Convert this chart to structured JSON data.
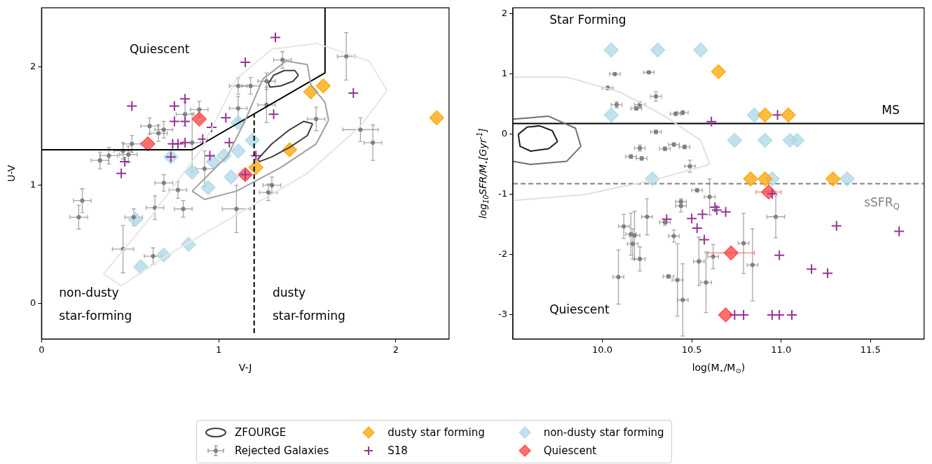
{
  "chart_data": [
    {
      "type": "scatter",
      "xlabel": "V-J",
      "ylabel": "U-V",
      "xlim": [
        0,
        2.3
      ],
      "ylim": [
        -0.3,
        2.5
      ],
      "xticks": [
        0,
        1,
        2
      ],
      "yticks": [
        0,
        1,
        2
      ],
      "grid": false,
      "legend": "bottom",
      "annotations": [
        "Quiescent",
        "non-dusty",
        "star-forming",
        "dusty",
        "star-forming"
      ],
      "series": [
        {
          "type": "line",
          "name": "ZFOURGE",
          "color": "#404040",
          "marker": "none",
          "x": [
            1.28,
            1.31,
            1.37,
            1.43,
            1.45
          ],
          "values": [
            1.86,
            1.93,
            1.97,
            1.97,
            1.93
          ]
        },
        {
          "type": "line",
          "color": "#404040",
          "marker": "none",
          "x": [
            1.28,
            1.29,
            1.35,
            1.42,
            1.45
          ],
          "values": [
            1.86,
            1.83,
            1.84,
            1.88,
            1.93
          ]
        },
        {
          "type": "line",
          "color": "#404040",
          "marker": "none",
          "x": [
            1.22,
            1.3,
            1.4,
            1.48,
            1.53
          ],
          "values": [
            1.22,
            1.35,
            1.47,
            1.54,
            1.52
          ]
        },
        {
          "type": "line",
          "color": "#404040",
          "marker": "none",
          "x": [
            1.22,
            1.23,
            1.3,
            1.4,
            1.5,
            1.53
          ],
          "values": [
            1.22,
            1.2,
            1.24,
            1.32,
            1.42,
            1.52
          ]
        },
        {
          "type": "line",
          "color": "#a0a0a0",
          "marker": "none",
          "x": [
            0.85,
            1.05,
            1.15,
            1.25,
            1.38,
            1.5,
            1.52,
            1.6,
            1.62
          ],
          "values": [
            0.95,
            1.25,
            1.55,
            1.9,
            2.05,
            2.02,
            1.85,
            1.7,
            1.55
          ]
        },
        {
          "type": "line",
          "color": "#a0a0a0",
          "marker": "none",
          "x": [
            0.85,
            0.92,
            1.1,
            1.35,
            1.55,
            1.62
          ],
          "values": [
            0.95,
            0.88,
            0.95,
            1.15,
            1.35,
            1.55
          ]
        },
        {
          "type": "line",
          "color": "#e6e6e6",
          "marker": "none",
          "x": [
            0.35,
            0.6,
            0.9,
            1.1,
            1.3,
            1.55,
            1.85,
            1.95
          ],
          "values": [
            0.25,
            0.7,
            1.3,
            1.9,
            2.15,
            2.2,
            2.05,
            1.8
          ]
        },
        {
          "type": "line",
          "color": "#e6e6e6",
          "marker": "none",
          "x": [
            0.35,
            0.45,
            0.7,
            1.1,
            1.5,
            1.8,
            1.95
          ],
          "values": [
            0.25,
            0.15,
            0.4,
            0.75,
            1.1,
            1.5,
            1.8
          ]
        },
        {
          "type": "line",
          "color": "#000000",
          "marker": "none",
          "x": [
            0,
            0.85,
            1.6,
            1.6
          ],
          "values": [
            1.3,
            1.3,
            1.95,
            2.5
          ]
        },
        {
          "type": "line",
          "color": "#000000",
          "marker": "none",
          "line_style": "dashed",
          "x": [
            1.2,
            1.2
          ],
          "values": [
            -0.25,
            1.6
          ]
        },
        {
          "name": "Rejected Galaxies",
          "color": "#808080",
          "marker": "circle",
          "x": [
            0.33,
            0.38,
            0.46,
            0.49,
            0.51,
            0.61,
            0.66,
            0.69,
            0.81,
            0.89,
            0.85,
            1.11,
            1.11,
            1.18,
            1.27,
            1.27,
            1.36,
            1.72,
            1.55,
            1.8,
            1.87,
            1.3,
            1.28,
            0.69,
            0.77,
            0.92,
            0.23,
            0.21,
            0.46,
            0.63,
            0.52,
            0.64,
            0.8,
            1.1
          ],
          "values": [
            1.21,
            1.25,
            1.29,
            1.26,
            1.35,
            1.5,
            1.44,
            1.47,
            1.6,
            1.64,
            1.36,
            1.84,
            1.65,
            1.84,
            1.68,
            1.88,
            2.06,
            2.09,
            1.56,
            1.47,
            1.36,
            1.0,
            0.94,
            1.02,
            0.96,
            1.14,
            0.87,
            0.73,
            0.46,
            0.4,
            0.73,
            0.81,
            0.8,
            0.8
          ],
          "errors": [
            0.07,
            0.07,
            0.07,
            0.07,
            0.07,
            0.07,
            0.07,
            0.07,
            0.1,
            0.07,
            0.25,
            0.07,
            0.1,
            0.07,
            0.15,
            0.07,
            0.07,
            0.2,
            0.1,
            0.1,
            0.15,
            0.07,
            0.07,
            0.07,
            0.07,
            0.15,
            0.1,
            0.1,
            0.2,
            0.07,
            0.07,
            0.1,
            0.07,
            0.2
          ],
          "xerrors": [
            0.05,
            0.05,
            0.05,
            0.05,
            0.05,
            0.05,
            0.05,
            0.05,
            0.05,
            0.05,
            0.05,
            0.05,
            0.05,
            0.05,
            0.05,
            0.05,
            0.05,
            0.05,
            0.05,
            0.1,
            0.05,
            0.05,
            0.05,
            0.05,
            0.05,
            0.05,
            0.05,
            0.05,
            0.06,
            0.05,
            0.05,
            0.05,
            0.05,
            0.08
          ]
        },
        {
          "name": "dusty star forming",
          "color": "#ffa500",
          "marker": "diamond",
          "x": [
            1.59,
            1.52,
            1.4,
            1.21,
            2.23
          ],
          "values": [
            1.84,
            1.79,
            1.3,
            1.15,
            1.57
          ]
        },
        {
          "name": "S18",
          "color": "#993399",
          "marker": "cross",
          "x": [
            1.15,
            1.32,
            0.51,
            0.81,
            0.75,
            0.75,
            0.81,
            0.96,
            1.04,
            0.91,
            1.06,
            0.74,
            0.77,
            0.81,
            0.47,
            0.45,
            0.73,
            0.95,
            1.31,
            1.76,
            1.21,
            1.15
          ],
          "values": [
            2.04,
            2.25,
            1.67,
            1.73,
            1.67,
            1.54,
            1.54,
            1.49,
            1.57,
            1.39,
            1.36,
            1.35,
            1.35,
            1.36,
            1.2,
            1.1,
            1.24,
            1.25,
            1.6,
            1.78,
            1.25,
            1.09
          ]
        },
        {
          "name": "non-dusty star forming",
          "color": "#add8e6",
          "marker": "diamond",
          "x": [
            0.73,
            1.11,
            0.85,
            0.94,
            0.97,
            1.03,
            1.11,
            1.19,
            1.07,
            0.53,
            0.69,
            0.83,
            0.56
          ],
          "values": [
            1.24,
            1.53,
            1.11,
            0.98,
            1.2,
            1.25,
            1.29,
            1.38,
            1.07,
            0.71,
            0.41,
            0.5,
            0.31
          ]
        },
        {
          "name": "Quiescent",
          "color": "#ff4040",
          "marker": "diamond",
          "x": [
            0.6,
            0.89,
            1.15
          ],
          "values": [
            1.35,
            1.56,
            1.09
          ]
        }
      ]
    },
    {
      "type": "scatter",
      "xlabel": "log(M$_{⋆}$/M$_{⊙}$)",
      "ylabel": "log$_{10}$SFR/M$_{⋆}$[Gyr$^{-1}$]",
      "xlim": [
        9.5,
        11.8
      ],
      "ylim": [
        -3.4,
        2.1
      ],
      "xticks": [
        {
          "value": 10,
          "label": "10.0"
        },
        {
          "value": 10.5,
          "label": "10.5"
        },
        {
          "value": 11,
          "label": "11.0"
        },
        {
          "value": 11.5,
          "label": "11.5"
        }
      ],
      "yticks": [
        -3,
        -2,
        -1,
        0,
        1,
        2
      ],
      "grid": false,
      "ref_lines": [
        {
          "axis": "y",
          "value": 0.18,
          "label": "MS",
          "color": "#000000",
          "line_style": "solid"
        },
        {
          "axis": "y",
          "value": -0.82,
          "label": "sSFR$_{Q}$",
          "color": "#808080",
          "line_style": "dashed"
        }
      ],
      "annotations": [
        "Star Forming",
        "Quiescent"
      ],
      "series": [
        {
          "type": "line",
          "color": "#202020",
          "marker": "none",
          "x": [
            9.53,
            9.58,
            9.65,
            9.72,
            9.75
          ],
          "values": [
            0.0,
            0.12,
            0.14,
            0.06,
            -0.12
          ]
        },
        {
          "type": "line",
          "color": "#202020",
          "marker": "none",
          "x": [
            9.53,
            9.54,
            9.6,
            9.7,
            9.75
          ],
          "values": [
            0.0,
            -0.2,
            -0.28,
            -0.24,
            -0.12
          ]
        },
        {
          "type": "line",
          "color": "#707070",
          "marker": "none",
          "x": [
            9.5,
            9.7,
            9.85,
            9.88
          ],
          "values": [
            0.25,
            0.3,
            0.1,
            -0.2
          ]
        },
        {
          "type": "line",
          "color": "#707070",
          "marker": "none",
          "x": [
            9.5,
            9.6,
            9.8,
            9.88
          ],
          "values": [
            -0.45,
            -0.5,
            -0.45,
            -0.2
          ]
        },
        {
          "type": "line",
          "color": "#e0e0e0",
          "marker": "none",
          "x": [
            9.5,
            9.8,
            10.1,
            10.35,
            10.55,
            10.6
          ],
          "values": [
            0.95,
            0.95,
            0.7,
            0.3,
            -0.1,
            -0.5
          ]
        },
        {
          "type": "line",
          "color": "#e0e0e0",
          "marker": "none",
          "x": [
            9.5,
            9.9,
            10.3,
            10.6
          ],
          "values": [
            -1.1,
            -1.0,
            -0.75,
            -0.5
          ]
        },
        {
          "color": "#808080",
          "marker": "circle",
          "x": [
            10.07,
            10.26,
            10.03,
            10.3,
            10.08,
            10.21,
            10.19,
            10.41,
            10.45,
            10.3,
            10.21,
            10.35,
            10.4,
            10.46,
            10.16,
            10.22,
            10.49,
            10.53,
            10.6,
            10.44,
            10.44,
            10.25,
            10.35,
            10.12,
            10.16,
            10.18,
            10.17,
            10.21,
            10.09,
            10.37,
            10.4,
            10.42,
            10.45,
            10.54,
            10.58,
            10.62,
            10.79,
            10.84,
            10.97
          ],
          "values": [
            1.0,
            1.03,
            0.77,
            0.63,
            0.49,
            0.49,
            0.43,
            0.34,
            0.36,
            0.04,
            -0.23,
            -0.24,
            -0.17,
            -0.21,
            -0.37,
            -0.4,
            -0.53,
            -0.93,
            -1.04,
            -1.12,
            -1.19,
            -1.37,
            -1.46,
            -1.53,
            -1.66,
            -1.68,
            -1.82,
            -2.07,
            -2.37,
            -2.36,
            -1.69,
            -2.42,
            -2.75,
            -2.11,
            -2.46,
            -2.03,
            -1.81,
            -2.17,
            -1.37
          ],
          "errors": [
            0.02,
            0.02,
            0.03,
            0.08,
            0.05,
            0.05,
            0.03,
            0.03,
            0.03,
            0.03,
            0.05,
            0.03,
            0.03,
            0.03,
            0.03,
            0.03,
            0.1,
            0.03,
            0.3,
            0.05,
            0.1,
            0.3,
            0.05,
            0.2,
            0.35,
            0.4,
            0.25,
            0.2,
            0.45,
            0.03,
            0.1,
            0.6,
            0.6,
            0.4,
            0.5,
            0.2,
            0.5,
            0.6,
            0.35
          ],
          "xerrors": [
            0.03,
            0.03,
            0.03,
            0.03,
            0.03,
            0.03,
            0.03,
            0.03,
            0.03,
            0.03,
            0.03,
            0.03,
            0.03,
            0.03,
            0.03,
            0.03,
            0.03,
            0.03,
            0.03,
            0.03,
            0.03,
            0.03,
            0.03,
            0.03,
            0.03,
            0.03,
            0.03,
            0.03,
            0.03,
            0.03,
            0.03,
            0.03,
            0.03,
            0.03,
            0.03,
            0.03,
            0.03,
            0.03,
            0.05
          ]
        },
        {
          "color": "#ffa500",
          "marker": "diamond",
          "x": [
            10.65,
            10.91,
            11.04,
            10.83,
            10.91,
            11.29
          ],
          "values": [
            1.04,
            0.32,
            0.32,
            -0.74,
            -0.74,
            -0.74
          ]
        },
        {
          "color": "#993399",
          "marker": "cross",
          "x": [
            10.61,
            10.98,
            10.36,
            10.5,
            10.56,
            10.63,
            10.64,
            10.69,
            10.53,
            10.57,
            10.99,
            11.17,
            11.26,
            11.31,
            11.66,
            10.74,
            10.79,
            10.95,
            10.99,
            11.06,
            10.95
          ],
          "values": [
            0.21,
            0.32,
            -1.41,
            -1.4,
            -1.33,
            -1.21,
            -1.26,
            -1.29,
            -1.56,
            -1.75,
            -2.01,
            -2.24,
            -2.31,
            -1.52,
            -1.61,
            -3.0,
            -3.0,
            -3.0,
            -3.0,
            -3.0,
            -0.99
          ]
        },
        {
          "color": "#add8e6",
          "marker": "diamond",
          "x": [
            10.05,
            10.31,
            10.55,
            10.05,
            10.85,
            10.74,
            10.91,
            11.05,
            11.09,
            10.28,
            10.95,
            11.37
          ],
          "values": [
            1.4,
            1.4,
            1.4,
            0.32,
            0.32,
            -0.1,
            -0.1,
            -0.1,
            -0.1,
            -0.74,
            -0.74,
            -0.74
          ]
        },
        {
          "color": "#ff4040",
          "marker": "diamond",
          "x": [
            10.93,
            10.72,
            10.69
          ],
          "values": [
            -0.96,
            -1.97,
            -3.0
          ],
          "xerrors": [
            0.07,
            0.13,
            null
          ]
        }
      ]
    }
  ]
}
